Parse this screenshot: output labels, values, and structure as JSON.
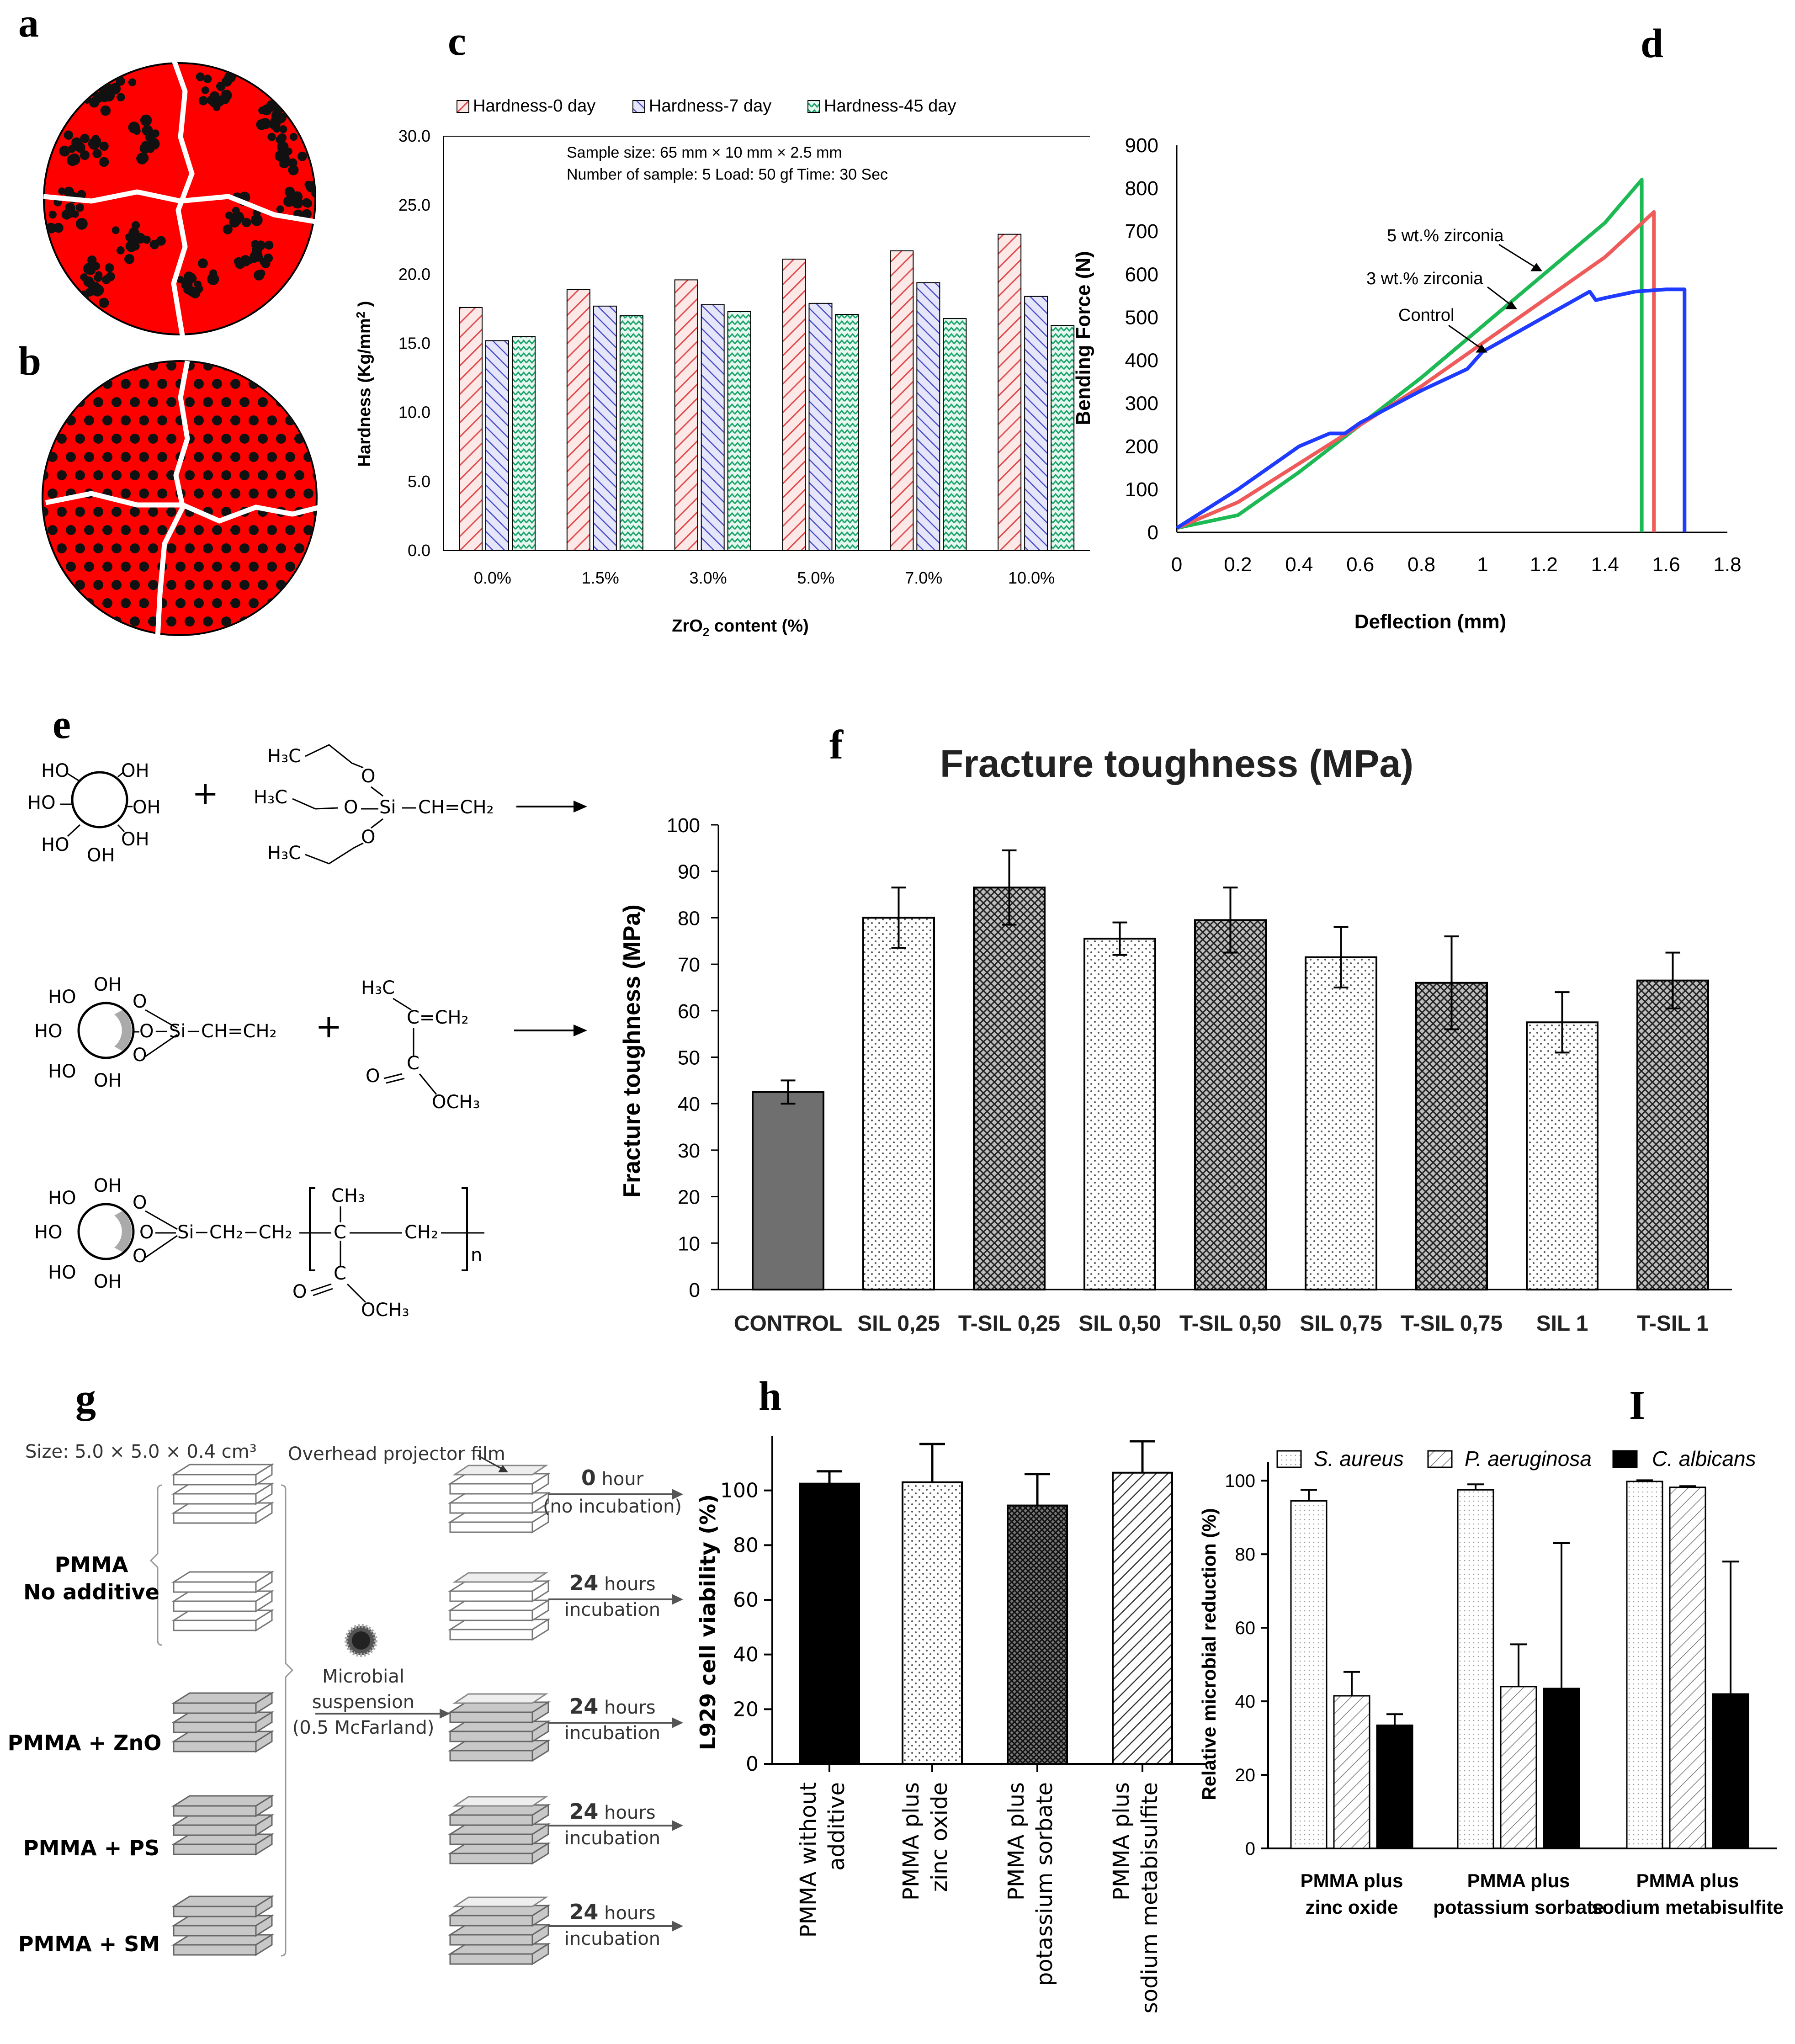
{
  "panel_labels": {
    "a": "a",
    "b": "b",
    "c": "c",
    "d": "d",
    "e": "e",
    "f": "f",
    "g": "g",
    "h": "h",
    "i": "I"
  },
  "colors": {
    "red": "#ff0000",
    "hard0": "#e04a4a",
    "hard7": "#4a4ac8",
    "hard45": "#1aa36a",
    "green": "#1db954",
    "blue": "#1f3bff",
    "salmon": "#ef5b5b",
    "control": "#6f6f6f"
  },
  "panel_c": {
    "chart_data": {
      "type": "bar",
      "categories": [
        "0.0%",
        "1.5%",
        "3.0%",
        "5.0%",
        "7.0%",
        "10.0%"
      ],
      "series": [
        {
          "name": "Hardness-0 day",
          "values": [
            17.6,
            18.9,
            19.6,
            21.1,
            21.7,
            22.9
          ]
        },
        {
          "name": "Hardness-7 day",
          "values": [
            15.2,
            17.7,
            17.8,
            17.9,
            19.4,
            18.4
          ]
        },
        {
          "name": "Hardness-45 day",
          "values": [
            15.5,
            17.0,
            17.3,
            17.1,
            16.8,
            16.3
          ]
        }
      ],
      "ylim": [
        0,
        30
      ],
      "yticks": [
        "0.0",
        "5.0",
        "10.0",
        "15.0",
        "20.0",
        "25.0",
        "30.0"
      ],
      "xlabel": "ZrO",
      "xlabel_sub": "2",
      "xlabel_rest": " content (%)",
      "ylabel": "Hardness (Kg/mm",
      "ylabel_sup": "2",
      "ylabel_rest": " )",
      "note1": "Sample size: 65 mm × 10 mm × 2.5 mm",
      "note2": "Number of sample: 5  Load: 50 gf Time: 30 Sec"
    }
  },
  "panel_d": {
    "chart_data": {
      "type": "line",
      "xlim": [
        0,
        1.8
      ],
      "ylim": [
        0,
        900
      ],
      "xticks": [
        "0",
        "0.2",
        "0.4",
        "0.6",
        "0.8",
        "1",
        "1.2",
        "1.4",
        "1.6",
        "1.8"
      ],
      "yticks": [
        "0",
        "100",
        "200",
        "300",
        "400",
        "500",
        "600",
        "700",
        "800",
        "900"
      ],
      "xlabel": "Deflection (mm)",
      "ylabel": "Bending Force (N)",
      "series": [
        {
          "name": "5 wt.% zirconia",
          "color": "green",
          "x": [
            0,
            0.2,
            0.4,
            0.6,
            0.8,
            1.0,
            1.2,
            1.4,
            1.52,
            1.52
          ],
          "y": [
            10,
            40,
            140,
            250,
            360,
            480,
            600,
            720,
            820,
            0
          ]
        },
        {
          "name": "3 wt.% zirconia",
          "color": "salmon",
          "x": [
            0,
            0.2,
            0.4,
            0.6,
            0.8,
            1.0,
            1.2,
            1.4,
            1.56,
            1.56
          ],
          "y": [
            10,
            70,
            160,
            250,
            340,
            440,
            540,
            640,
            745,
            0
          ]
        },
        {
          "name": "Control",
          "color": "blue",
          "x": [
            0,
            0.2,
            0.4,
            0.5,
            0.55,
            0.6,
            0.8,
            0.95,
            1.0,
            1.2,
            1.35,
            1.37,
            1.4,
            1.5,
            1.6,
            1.66,
            1.66
          ],
          "y": [
            10,
            100,
            200,
            230,
            230,
            255,
            330,
            380,
            420,
            500,
            560,
            540,
            545,
            560,
            565,
            565,
            0
          ]
        }
      ],
      "annotations": [
        "5 wt.% zirconia",
        "3 wt.% zirconia",
        "Control"
      ]
    }
  },
  "panel_e": {
    "texts": {
      "ho": "HO",
      "oh": "OH",
      "h3c": "H₃C",
      "o": "O",
      "si": "Si",
      "ch": "CH=CH₂",
      "ch2": "CH₂",
      "cch2": "C=CH₂",
      "c": "C",
      "och3": "OCH₃",
      "ch3": "CH₃",
      "n": "n",
      "plus": "+",
      "sich2": "Si−CH₂−CH₂",
      "sivinyl": "Si−CH=CH₂",
      "och": "O−Si−CH=CH₂"
    }
  },
  "panel_f": {
    "chart_data": {
      "type": "bar",
      "title": "Fracture toughness (MPa)",
      "ylabel": "Fracture toughness (MPa)",
      "categories": [
        "CONTROL",
        "SIL 0,25",
        "T-SIL 0,25",
        "SIL 0,50",
        "T-SIL 0,50",
        "SIL 0,75",
        "T-SIL 0,75",
        "SIL 1",
        "T-SIL 1"
      ],
      "values": [
        42.5,
        80,
        86.5,
        75.5,
        79.5,
        71.5,
        66,
        57.5,
        66.5
      ],
      "errors": [
        2.5,
        6.5,
        8,
        3.5,
        7,
        6.5,
        10,
        6.5,
        6
      ],
      "ylim": [
        0,
        100
      ],
      "yticks": [
        "0",
        "10",
        "20",
        "30",
        "40",
        "50",
        "60",
        "70",
        "80",
        "90",
        "100"
      ]
    }
  },
  "panel_g": {
    "size": "Size: 5.0 × 5.0 × 0.4 cm³",
    "film": "Overhead projector film",
    "pmma": "PMMA",
    "no_additive": "No additive",
    "zno": "PMMA + ZnO",
    "ps": "PMMA + PS",
    "sm": "PMMA + SM",
    "microbial": "Microbial",
    "suspension": "suspension",
    "mcfarland": "(0.5 McFarland)",
    "zero": "0",
    "hour": " hour",
    "no_incubation": "(no incubation)",
    "h24": "24",
    "hours": " hours",
    "incubation": "incubation"
  },
  "panel_h": {
    "chart_data": {
      "type": "bar",
      "ylabel": "L929 cell viability (%)",
      "categories": [
        "PMMA without additive",
        "PMMA plus zinc oxide",
        "PMMA plus potassium sorbate",
        "PMMA plus sodium metabisulfite"
      ],
      "cat_lines": [
        [
          "PMMA without",
          "additive"
        ],
        [
          "PMMA plus",
          "zinc oxide"
        ],
        [
          "PMMA plus",
          "potassium sorbate"
        ],
        [
          "PMMA plus",
          "sodium metabisulfite"
        ]
      ],
      "values": [
        102.5,
        103,
        94.5,
        106.5
      ],
      "errors": [
        4.5,
        14,
        11.5,
        11.5
      ],
      "ylim": [
        0,
        120
      ],
      "yticks": [
        "0",
        "20",
        "40",
        "60",
        "80",
        "100"
      ]
    }
  },
  "panel_i": {
    "chart_data": {
      "type": "bar",
      "ylabel": "Relative microbial reduction (%)",
      "categories": [
        "PMMA plus zinc oxide",
        "PMMA plus potassium sorbate",
        "PMMA plus sodium metabisulfite"
      ],
      "cat_lines": [
        [
          "PMMA plus",
          "zinc oxide"
        ],
        [
          "PMMA plus",
          "potassium sorbate"
        ],
        [
          "PMMA plus",
          "sodium metabisulfite"
        ]
      ],
      "series": [
        {
          "name": "S. aureus",
          "values": [
            94.5,
            97.5,
            99.8
          ],
          "errors": [
            3,
            1.5,
            0.3
          ]
        },
        {
          "name": "P. aeruginosa",
          "values": [
            41.5,
            44,
            98.2
          ],
          "errors": [
            6.5,
            11.5,
            0.3
          ]
        },
        {
          "name": "C. albicans",
          "values": [
            33.5,
            43.5,
            42
          ],
          "errors": [
            3,
            39.5,
            36
          ]
        }
      ],
      "ylim": [
        0,
        105
      ],
      "yticks": [
        "0",
        "20",
        "40",
        "60",
        "80",
        "100"
      ]
    }
  }
}
